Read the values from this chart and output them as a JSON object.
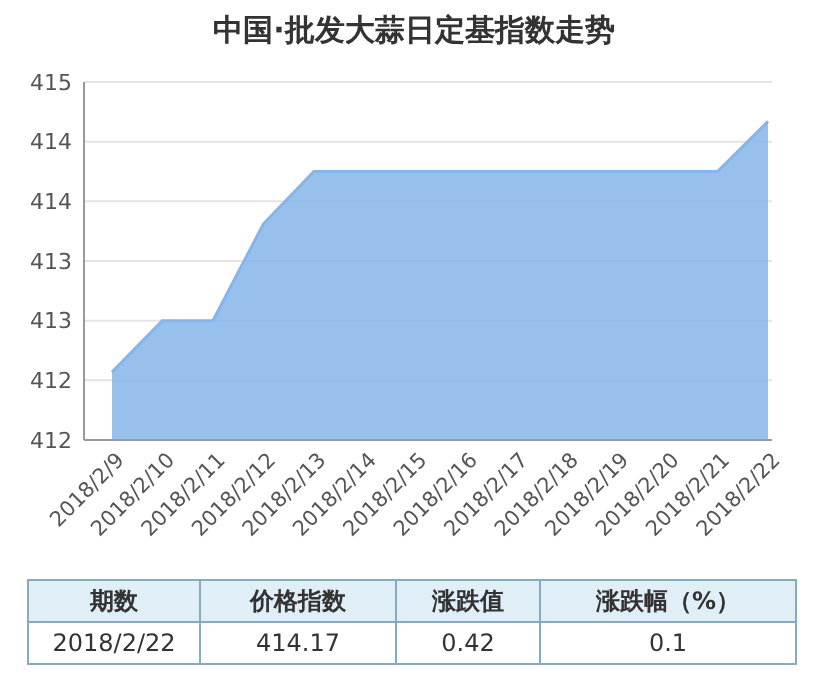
{
  "chart_data": {
    "type": "area",
    "title": "中国·批发大蒜日定基指数走势",
    "categories": [
      "2018/2/9",
      "2018/2/10",
      "2018/2/11",
      "2018/2/12",
      "2018/2/13",
      "2018/2/14",
      "2018/2/15",
      "2018/2/16",
      "2018/2/17",
      "2018/2/18",
      "2018/2/19",
      "2018/2/20",
      "2018/2/21",
      "2018/2/22"
    ],
    "values": [
      412.07,
      412.5,
      412.5,
      413.31,
      413.75,
      413.75,
      413.75,
      413.75,
      413.75,
      413.75,
      413.75,
      413.75,
      413.75,
      414.17
    ],
    "color": "#85b5ea",
    "ylim": [
      411.5,
      414.5
    ],
    "yticks": [
      {
        "value": 411.5,
        "label": "412"
      },
      {
        "value": 412,
        "label": "412"
      },
      {
        "value": 412.5,
        "label": "413"
      },
      {
        "value": 413,
        "label": "413"
      },
      {
        "value": 413.5,
        "label": "414"
      },
      {
        "value": 414,
        "label": "414"
      },
      {
        "value": 414.5,
        "label": "415"
      }
    ],
    "grid": "y",
    "annotations": [
      "期数",
      "价格指数",
      "涨跌值",
      "涨跌幅（%）",
      "2018/2/22",
      "414.17",
      "0.42",
      "0.1"
    ]
  }
}
